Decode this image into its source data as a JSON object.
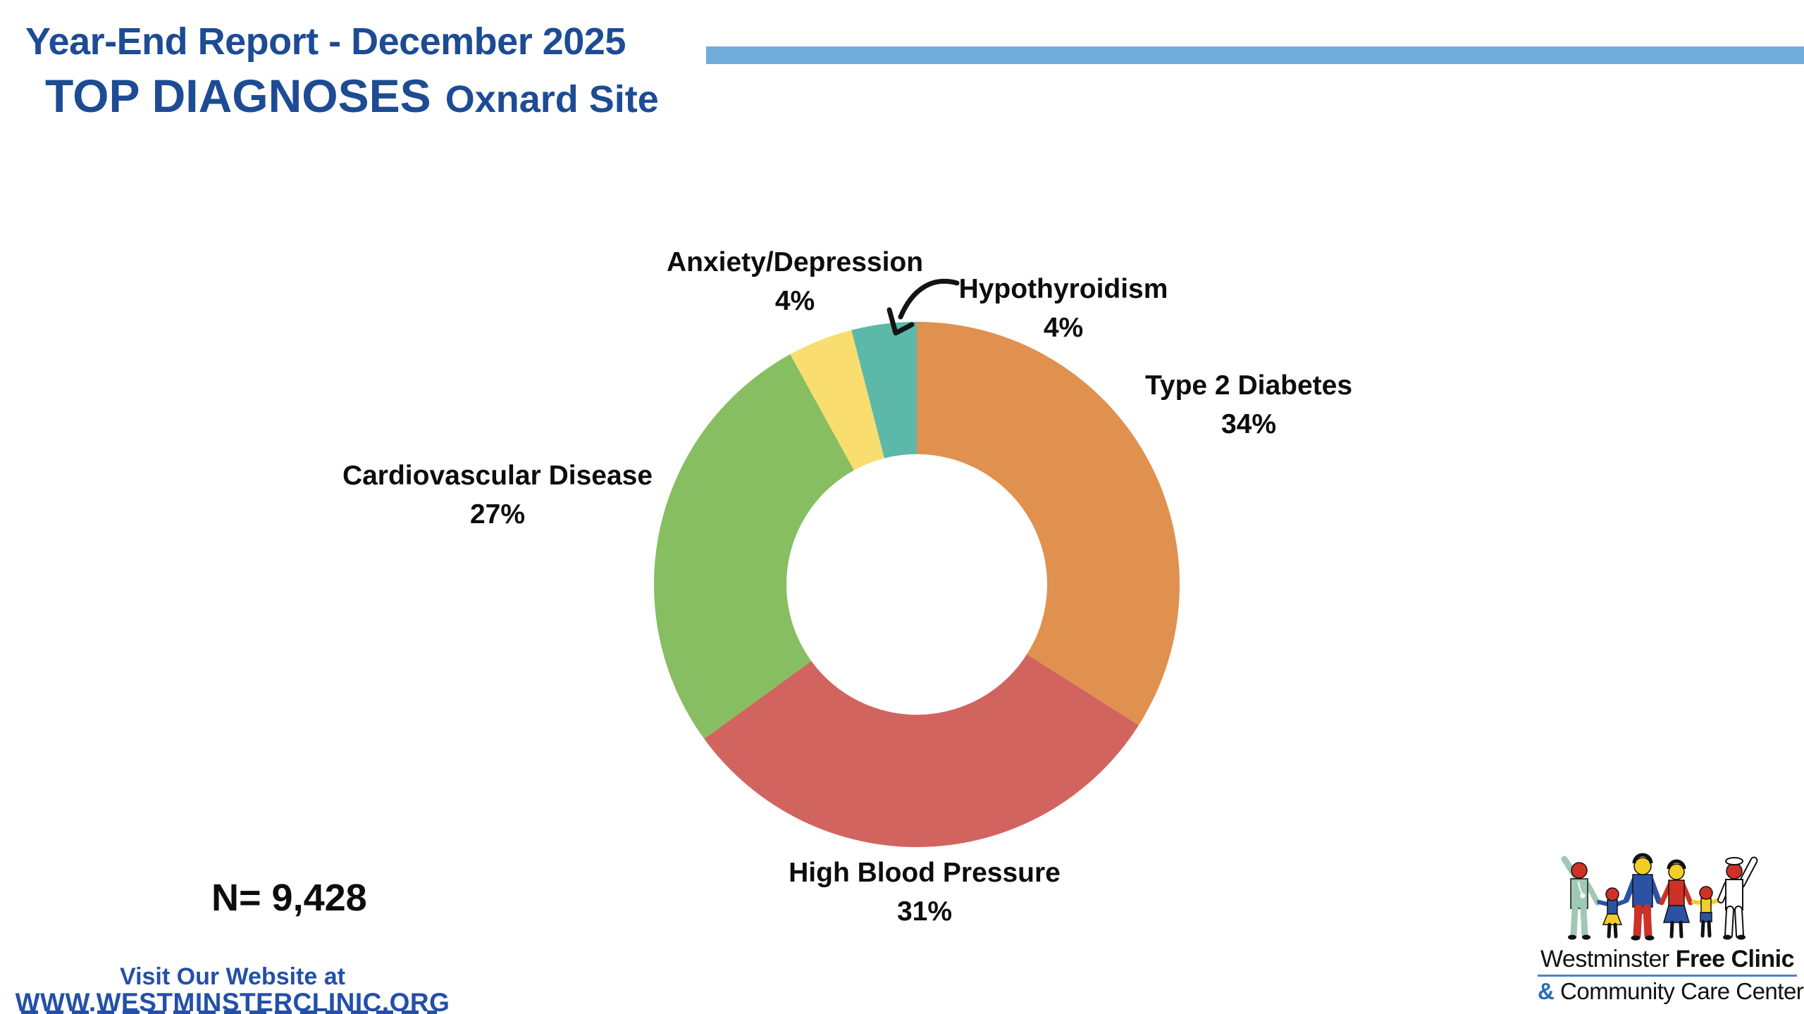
{
  "slide": {
    "report_title": "Year-End Report - December 2025",
    "main_title": "TOP DIAGNOSES",
    "site_subtitle": "Oxnard Site",
    "sample_size_label": "N= 9,428",
    "colors": {
      "title_blue": "#1D4B94",
      "accent_bar_blue": "#6FACDB",
      "website_blue": "#2350A8",
      "label_black": "#0d0d0d"
    }
  },
  "chart_data": {
    "type": "pie",
    "variant": "donut",
    "title": "Top Diagnoses - Oxnard Site",
    "n": "9,428",
    "start_angle_deg": 0,
    "direction": "clockwise",
    "inner_radius_ratio": 0.496,
    "legend": "none",
    "segments": [
      {
        "label": "Type 2 Diabetes",
        "value": 34,
        "pct_label": "34%",
        "color": "#E0914F"
      },
      {
        "label": "High Blood Pressure",
        "value": 31,
        "pct_label": "31%",
        "color": "#D26460"
      },
      {
        "label": "Cardiovascular Disease",
        "value": 27,
        "pct_label": "27%",
        "color": "#86BE61"
      },
      {
        "label": "Anxiety/Depression",
        "value": 4,
        "pct_label": "4%",
        "color": "#F9DD6E"
      },
      {
        "label": "Hypothyroidism",
        "value": 4,
        "pct_label": "4%",
        "color": "#5CB9A9"
      }
    ],
    "annotation": {
      "callout_arrow_target": "Hypothyroidism"
    }
  },
  "footer": {
    "website_line1": "Visit Our Website at",
    "website_line2": "WWW.WESTMINSTERCLINIC.ORG"
  },
  "logo": {
    "org_name_regular": "Westminster",
    "org_name_bold": "Free Clinic",
    "tagline_amp": "&",
    "tagline_text": "Community Care Center"
  }
}
